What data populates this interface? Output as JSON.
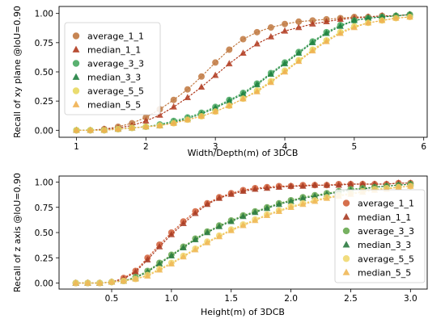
{
  "chart_data": [
    {
      "type": "scatter",
      "xlabel": "Width/Depth(m) of 3DCB",
      "ylabel": "Recall of xy plane @IoU=0.90",
      "xlim": [
        0.75,
        6.05
      ],
      "ylim": [
        -0.06,
        1.06
      ],
      "xticks": [
        "1",
        "2",
        "3",
        "4",
        "5",
        "6"
      ],
      "xtick_values": [
        1,
        2,
        3,
        4,
        5,
        6
      ],
      "yticks": [
        "0.00",
        "0.25",
        "0.50",
        "0.75",
        "1.00"
      ],
      "ytick_values": [
        0,
        0.25,
        0.5,
        0.75,
        1.0
      ],
      "legend_position": "upper-left",
      "x": [
        1.0,
        1.2,
        1.4,
        1.6,
        1.8,
        2.0,
        2.2,
        2.4,
        2.6,
        2.8,
        3.0,
        3.2,
        3.4,
        3.6,
        3.8,
        4.0,
        4.2,
        4.4,
        4.6,
        4.8,
        5.0,
        5.2,
        5.4,
        5.6,
        5.8
      ],
      "series": [
        {
          "name": "average_1_1",
          "marker": "circle",
          "color": "#c07840",
          "values": [
            0.0,
            0.0,
            0.01,
            0.03,
            0.06,
            0.11,
            0.18,
            0.26,
            0.35,
            0.46,
            0.58,
            0.69,
            0.78,
            0.84,
            0.88,
            0.91,
            0.93,
            0.94,
            0.95,
            0.96,
            0.97,
            0.97,
            0.98,
            0.98,
            0.99
          ]
        },
        {
          "name": "median_1_1",
          "marker": "triangle",
          "color": "#b03a1e",
          "values": [
            0.0,
            0.0,
            0.01,
            0.02,
            0.04,
            0.08,
            0.13,
            0.2,
            0.28,
            0.37,
            0.47,
            0.57,
            0.66,
            0.74,
            0.8,
            0.85,
            0.88,
            0.91,
            0.93,
            0.95,
            0.96,
            0.97,
            0.98,
            0.98,
            0.99
          ]
        },
        {
          "name": "average_3_3",
          "marker": "circle",
          "color": "#48a860",
          "values": [
            0.0,
            0.0,
            0.0,
            0.01,
            0.02,
            0.03,
            0.05,
            0.08,
            0.11,
            0.15,
            0.2,
            0.26,
            0.32,
            0.4,
            0.49,
            0.58,
            0.67,
            0.76,
            0.84,
            0.9,
            0.94,
            0.96,
            0.97,
            0.98,
            0.99
          ]
        },
        {
          "name": "median_3_3",
          "marker": "triangle",
          "color": "#1f8040",
          "values": [
            0.0,
            0.0,
            0.0,
            0.01,
            0.02,
            0.03,
            0.04,
            0.07,
            0.1,
            0.14,
            0.19,
            0.25,
            0.31,
            0.39,
            0.48,
            0.57,
            0.66,
            0.75,
            0.83,
            0.89,
            0.94,
            0.96,
            0.97,
            0.98,
            0.99
          ]
        },
        {
          "name": "average_5_5",
          "marker": "circle",
          "color": "#e8d860",
          "values": [
            0.0,
            0.0,
            0.0,
            0.01,
            0.02,
            0.03,
            0.04,
            0.06,
            0.09,
            0.12,
            0.16,
            0.21,
            0.27,
            0.34,
            0.42,
            0.51,
            0.6,
            0.69,
            0.77,
            0.84,
            0.89,
            0.92,
            0.94,
            0.96,
            0.97
          ]
        },
        {
          "name": "median_5_5",
          "marker": "triangle",
          "color": "#f0b050",
          "values": [
            0.0,
            0.0,
            0.0,
            0.01,
            0.02,
            0.03,
            0.04,
            0.06,
            0.09,
            0.12,
            0.16,
            0.21,
            0.27,
            0.33,
            0.41,
            0.5,
            0.59,
            0.68,
            0.76,
            0.83,
            0.88,
            0.92,
            0.94,
            0.96,
            0.97
          ]
        }
      ]
    },
    {
      "type": "scatter",
      "xlabel": "Height(m) of 3DCB",
      "ylabel": "Recall of z axis @IoU=0.90",
      "xlim": [
        0.06,
        3.14
      ],
      "ylim": [
        -0.06,
        1.06
      ],
      "xticks": [
        "0.5",
        "1.0",
        "1.5",
        "2.0",
        "2.5",
        "3.0"
      ],
      "xtick_values": [
        0.5,
        1.0,
        1.5,
        2.0,
        2.5,
        3.0
      ],
      "yticks": [
        "0.00",
        "0.25",
        "0.50",
        "0.75",
        "1.00"
      ],
      "ytick_values": [
        0,
        0.25,
        0.5,
        0.75,
        1.0
      ],
      "legend_position": "lower-right",
      "x": [
        0.2,
        0.3,
        0.4,
        0.5,
        0.6,
        0.7,
        0.8,
        0.9,
        1.0,
        1.1,
        1.2,
        1.3,
        1.4,
        1.5,
        1.6,
        1.7,
        1.8,
        1.9,
        2.0,
        2.1,
        2.2,
        2.3,
        2.4,
        2.5,
        2.6,
        2.7,
        2.8,
        2.9,
        3.0
      ],
      "series": [
        {
          "name": "average_1_1",
          "marker": "circle",
          "color": "#d2603a",
          "values": [
            0.0,
            0.0,
            0.0,
            0.01,
            0.05,
            0.12,
            0.25,
            0.38,
            0.5,
            0.61,
            0.71,
            0.79,
            0.85,
            0.89,
            0.92,
            0.94,
            0.95,
            0.96,
            0.96,
            0.97,
            0.97,
            0.97,
            0.98,
            0.98,
            0.98,
            0.98,
            0.98,
            0.99,
            0.99
          ]
        },
        {
          "name": "median_1_1",
          "marker": "triangle",
          "color": "#a83c24",
          "values": [
            0.0,
            0.0,
            0.0,
            0.01,
            0.04,
            0.11,
            0.23,
            0.36,
            0.48,
            0.59,
            0.69,
            0.78,
            0.84,
            0.88,
            0.91,
            0.93,
            0.94,
            0.95,
            0.96,
            0.96,
            0.97,
            0.97,
            0.97,
            0.98,
            0.98,
            0.98,
            0.98,
            0.99,
            0.99
          ]
        },
        {
          "name": "average_3_3",
          "marker": "circle",
          "color": "#68a850",
          "values": [
            0.0,
            0.0,
            0.0,
            0.01,
            0.02,
            0.06,
            0.12,
            0.2,
            0.28,
            0.36,
            0.44,
            0.51,
            0.57,
            0.62,
            0.67,
            0.71,
            0.75,
            0.79,
            0.82,
            0.85,
            0.87,
            0.89,
            0.91,
            0.93,
            0.94,
            0.95,
            0.96,
            0.97,
            0.98
          ]
        },
        {
          "name": "median_3_3",
          "marker": "triangle",
          "color": "#2a7a40",
          "values": [
            0.0,
            0.0,
            0.0,
            0.01,
            0.02,
            0.05,
            0.11,
            0.19,
            0.27,
            0.35,
            0.43,
            0.5,
            0.56,
            0.61,
            0.66,
            0.7,
            0.74,
            0.78,
            0.81,
            0.84,
            0.86,
            0.88,
            0.9,
            0.92,
            0.93,
            0.95,
            0.96,
            0.97,
            0.98
          ]
        },
        {
          "name": "average_5_5",
          "marker": "circle",
          "color": "#f0d870",
          "values": [
            0.0,
            0.0,
            0.0,
            0.01,
            0.02,
            0.04,
            0.08,
            0.14,
            0.2,
            0.27,
            0.34,
            0.41,
            0.47,
            0.53,
            0.58,
            0.63,
            0.68,
            0.72,
            0.76,
            0.79,
            0.82,
            0.85,
            0.87,
            0.89,
            0.91,
            0.93,
            0.94,
            0.95,
            0.96
          ]
        },
        {
          "name": "median_5_5",
          "marker": "triangle",
          "color": "#f0b858",
          "values": [
            0.0,
            0.0,
            0.0,
            0.01,
            0.02,
            0.04,
            0.07,
            0.13,
            0.19,
            0.26,
            0.33,
            0.4,
            0.46,
            0.52,
            0.57,
            0.62,
            0.67,
            0.71,
            0.75,
            0.78,
            0.81,
            0.84,
            0.86,
            0.88,
            0.9,
            0.92,
            0.93,
            0.95,
            0.96
          ]
        }
      ]
    }
  ]
}
